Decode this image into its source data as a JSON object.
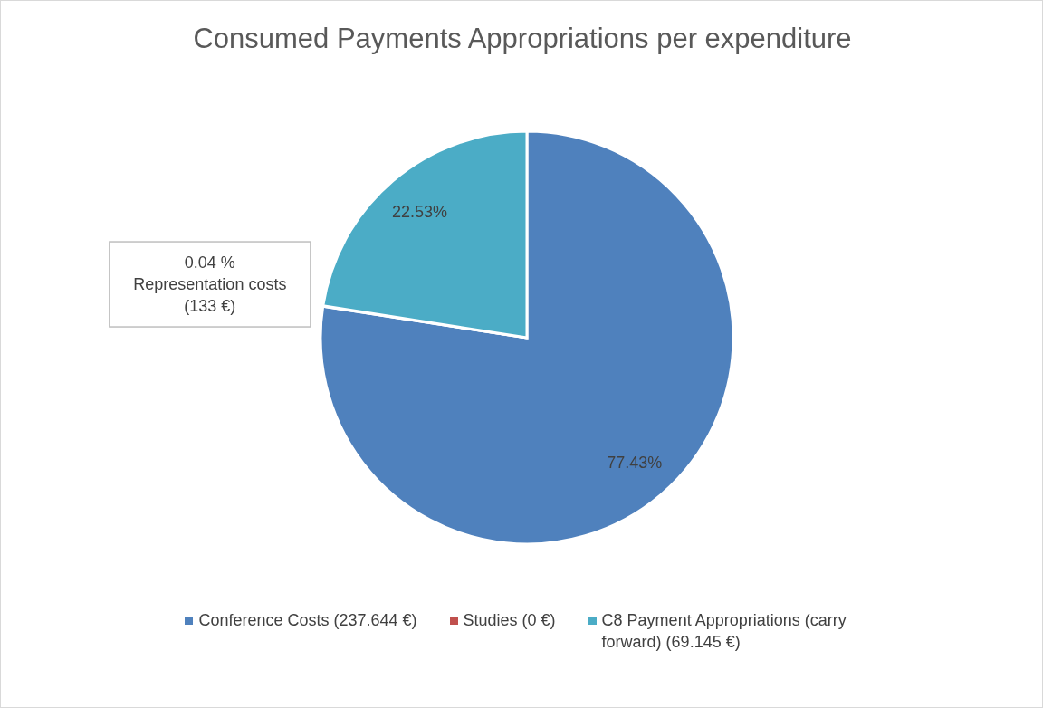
{
  "chart_data": {
    "type": "pie",
    "title": "Consumed Payments Appropriations per expenditure",
    "categories": [
      "Conference Costs (237.644 €)",
      null,
      "Studies (0 €)",
      "C8 Payment Appropriations (carry forward) (69.145 €)"
    ],
    "values": [
      77.43,
      0.04,
      0,
      22.53
    ],
    "colors": [
      "#4f81bd",
      "#9bbb59",
      "#c0504d",
      "#4bacc6"
    ],
    "value_labels": [
      "77.43%",
      "0.04 %\nRepresentation costs\n(133 €)",
      null,
      "22.53%"
    ],
    "legend": "bottom"
  }
}
